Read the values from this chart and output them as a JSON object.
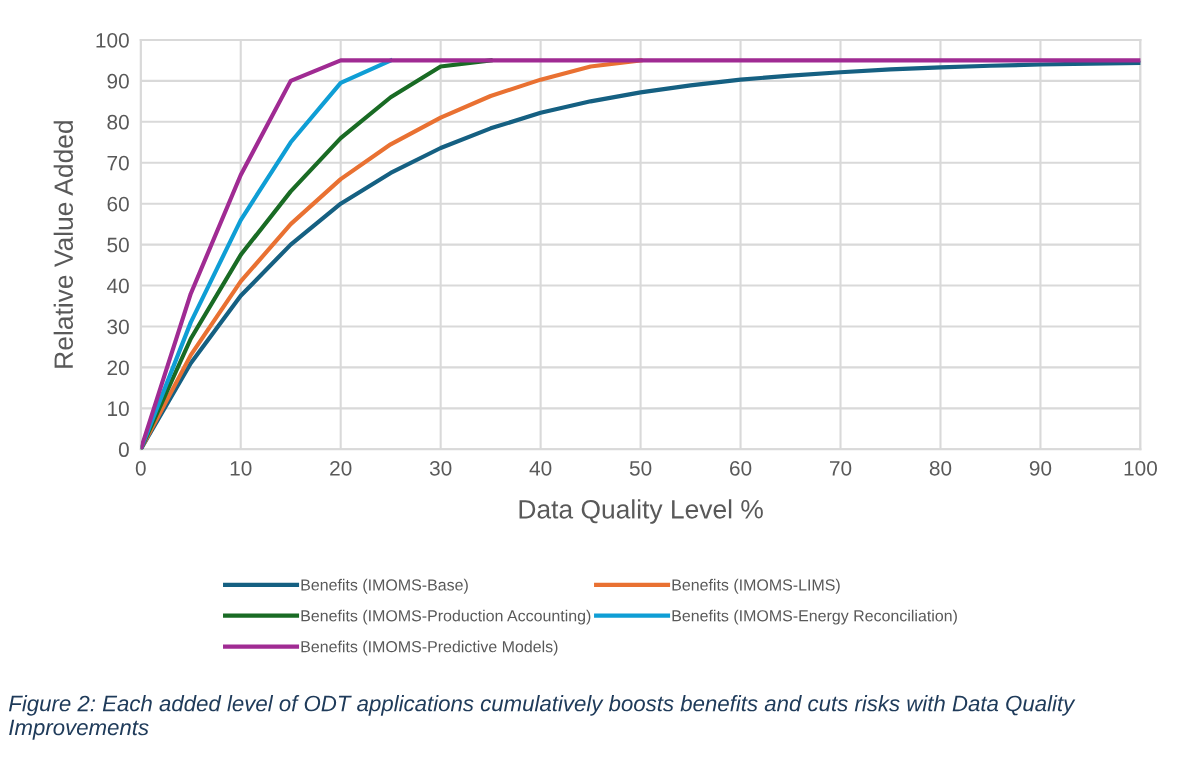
{
  "chart_data": {
    "type": "line",
    "xlabel": "Data Quality Level %",
    "ylabel": "Relative Value Added",
    "x": [
      0,
      5,
      10,
      15,
      20,
      25,
      30,
      35,
      40,
      45,
      50,
      55,
      60,
      65,
      70,
      75,
      80,
      85,
      90,
      95,
      100
    ],
    "series": [
      {
        "name": "Benefits (IMOMS-Base)",
        "color": "#156082",
        "values": [
          0,
          21,
          37.5,
          50,
          60,
          67.5,
          73.6,
          78.4,
          82.2,
          85,
          87.2,
          88.9,
          90.3,
          91.3,
          92.1,
          92.8,
          93.3,
          93.7,
          94,
          94.2,
          94.4
        ]
      },
      {
        "name": "Benefits (IMOMS-LIMS)",
        "color": "#e97132",
        "values": [
          0,
          23,
          41,
          55,
          66,
          74.5,
          81,
          86.3,
          90.3,
          93.5,
          95,
          null,
          null,
          null,
          null,
          null,
          null,
          null,
          null,
          null,
          null
        ]
      },
      {
        "name": "Benefits (IMOMS-Production Accounting)",
        "color": "#196b24",
        "values": [
          0,
          27,
          47.5,
          63,
          76,
          86,
          93.5,
          95,
          null,
          null,
          null,
          null,
          null,
          null,
          null,
          null,
          null,
          null,
          null,
          null,
          null
        ]
      },
      {
        "name": "Benefits (IMOMS-Energy Reconciliation)",
        "color": "#0f9ed5",
        "values": [
          0,
          31,
          56,
          75,
          89.5,
          95,
          null,
          null,
          null,
          null,
          null,
          null,
          null,
          null,
          null,
          null,
          null,
          null,
          null,
          null,
          null
        ]
      },
      {
        "name": "Benefits (IMOMS-Predictive Models)",
        "color": "#a02b93",
        "values": [
          0,
          38,
          67,
          90,
          95,
          95,
          95,
          95,
          95,
          95,
          95,
          95,
          95,
          95,
          95,
          95,
          95,
          95,
          95,
          95,
          95
        ]
      }
    ],
    "xlim": [
      0,
      100
    ],
    "xticks": [
      0,
      10,
      20,
      30,
      40,
      50,
      60,
      70,
      80,
      90,
      100
    ],
    "ylim": [
      0,
      100
    ],
    "yticks": [
      0,
      10,
      20,
      30,
      40,
      50,
      60,
      70,
      80,
      90,
      100
    ],
    "grid": true,
    "legend": "bottom",
    "marker": "none",
    "line_style": "solid",
    "annotations": [
      "Figure 2: Each added level of ODT applications cumulatively boosts benefits and cuts risks with Data Quality Improvements"
    ]
  }
}
